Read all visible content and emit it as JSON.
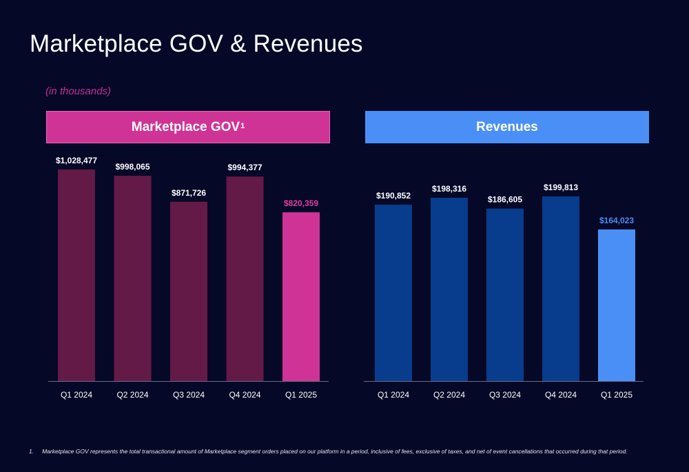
{
  "page": {
    "title": "Marketplace GOV & Revenues",
    "subtitle": "(in thousands)"
  },
  "colors": {
    "background": "#050827",
    "gov_header": "#d03396",
    "gov_bar": "#641a46",
    "gov_highlight": "#d03396",
    "rev_header": "#4a8ff5",
    "rev_bar": "#083c8c",
    "rev_highlight": "#4a8ff5"
  },
  "panels": {
    "gov": {
      "title": "Marketplace GOV",
      "superscript": "1"
    },
    "rev": {
      "title": "Revenues"
    }
  },
  "chart_data": [
    {
      "type": "bar",
      "title": "Marketplace GOV",
      "categories": [
        "Q1 2024",
        "Q2 2024",
        "Q3 2024",
        "Q4 2024",
        "Q1 2025"
      ],
      "values": [
        1028477,
        998065,
        871726,
        994377,
        820359
      ],
      "labels": [
        "$1,028,477",
        "$998,065",
        "$871,726",
        "$994,377",
        "$820,359"
      ],
      "highlight_index": 4,
      "ylim": [
        0,
        1028477
      ],
      "grid": false
    },
    {
      "type": "bar",
      "title": "Revenues",
      "categories": [
        "Q1 2024",
        "Q2 2024",
        "Q3 2024",
        "Q4 2024",
        "Q1 2025"
      ],
      "values": [
        190852,
        198316,
        186605,
        199813,
        164023
      ],
      "labels": [
        "$190,852",
        "$198,316",
        "$186,605",
        "$199,813",
        "$164,023"
      ],
      "highlight_index": 4,
      "ylim": [
        0,
        199813
      ],
      "grid": false
    }
  ],
  "footnote": {
    "number": "1.",
    "text": "Marketplace GOV represents the total transactional amount of Marketplace segment orders placed on our platform in a period, inclusive of fees, exclusive of taxes, and net of event cancellations that occurred during that period."
  }
}
